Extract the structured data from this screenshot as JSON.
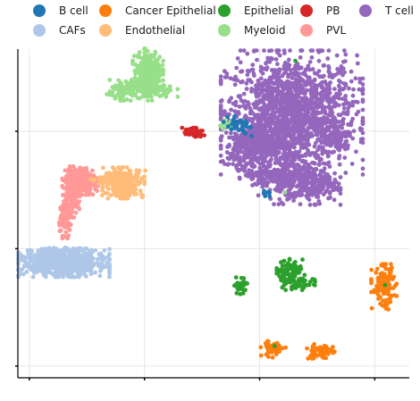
{
  "chart_data": {
    "type": "scatter",
    "title": "",
    "xlabel": "",
    "ylabel": "",
    "xlim": [
      -12,
      22
    ],
    "ylim": [
      -12,
      16
    ],
    "xticks": [
      -11,
      -1,
      9,
      19
    ],
    "yticks": [
      -11,
      -1,
      9
    ],
    "grid": true,
    "legend_position": "top",
    "series": [
      {
        "name": "B cell",
        "color": "#1f77b4",
        "clusters": [
          {
            "x": 7.1,
            "y": 9.5,
            "sx": 0.7,
            "sy": 0.35,
            "n": 30
          },
          {
            "x": 9.6,
            "y": 3.5,
            "sx": 0.3,
            "sy": 0.25,
            "n": 6
          }
        ]
      },
      {
        "name": "Cancer Epithelial",
        "color": "#ff7f0e",
        "clusters": [
          {
            "x": 19.8,
            "y": -4.3,
            "sx": 0.5,
            "sy": 0.9,
            "n": 120
          },
          {
            "x": 10.2,
            "y": -9.5,
            "sx": 0.5,
            "sy": 0.35,
            "n": 60
          },
          {
            "x": 14.2,
            "y": -9.8,
            "sx": 0.6,
            "sy": 0.3,
            "n": 60
          }
        ]
      },
      {
        "name": "Epithelial",
        "color": "#2ca02c",
        "clusters": [
          {
            "x": 11.7,
            "y": -3.2,
            "sx": 0.55,
            "sy": 0.6,
            "n": 110
          },
          {
            "x": 7.3,
            "y": -4.1,
            "sx": 0.3,
            "sy": 0.35,
            "n": 30
          },
          {
            "x": 12.8,
            "y": -4.0,
            "sx": 0.6,
            "sy": 0.2,
            "n": 25
          }
        ]
      },
      {
        "name": "PB",
        "color": "#d62728",
        "clusters": [
          {
            "x": 3.2,
            "y": 8.9,
            "sx": 0.45,
            "sy": 0.25,
            "n": 40
          }
        ]
      },
      {
        "name": "T cell",
        "color": "#9467bd",
        "clusters": [
          {
            "x": 11.8,
            "y": 10.6,
            "sx": 2.8,
            "sy": 2.4,
            "n": 1500
          },
          {
            "x": 9.0,
            "y": 8.0,
            "sx": 1.2,
            "sy": 0.9,
            "n": 350
          },
          {
            "x": 11.6,
            "y": 5.2,
            "sx": 0.9,
            "sy": 1.1,
            "n": 180
          },
          {
            "x": 13.6,
            "y": 4.5,
            "sx": 1.1,
            "sy": 0.8,
            "n": 200
          },
          {
            "x": 15.5,
            "y": 8.3,
            "sx": 0.6,
            "sy": 0.5,
            "n": 80
          },
          {
            "x": 9.2,
            "y": 5.3,
            "sx": 0.6,
            "sy": 0.8,
            "n": 80
          },
          {
            "x": 7.5,
            "y": 6.6,
            "sx": 0.7,
            "sy": 0.8,
            "n": 40
          }
        ]
      },
      {
        "name": "CAFs",
        "color": "#aec7e8",
        "clusters": [
          {
            "x": -8.0,
            "y": -2.2,
            "sx": 1.8,
            "sy": 0.55,
            "n": 700
          },
          {
            "x": -8.8,
            "y": -1.7,
            "sx": 0.9,
            "sy": 0.4,
            "n": 120
          },
          {
            "x": -9.8,
            "y": -2.5,
            "sx": 0.4,
            "sy": 0.15,
            "n": 40
          }
        ]
      },
      {
        "name": "Endothelial",
        "color": "#ffbb78",
        "clusters": [
          {
            "x": -2.8,
            "y": 4.6,
            "sx": 0.85,
            "sy": 0.6,
            "n": 280
          },
          {
            "x": -4.8,
            "y": 4.9,
            "sx": 0.4,
            "sy": 0.15,
            "n": 12
          }
        ]
      },
      {
        "name": "Myeloid",
        "color": "#98df8a",
        "clusters": [
          {
            "x": -0.7,
            "y": 14.3,
            "sx": 0.6,
            "sy": 0.8,
            "n": 220
          },
          {
            "x": -1.2,
            "y": 12.5,
            "sx": 1.4,
            "sy": 0.4,
            "n": 200
          },
          {
            "x": 6.1,
            "y": 9.5,
            "sx": 0.4,
            "sy": 0.2,
            "n": 25
          }
        ]
      },
      {
        "name": "PVL",
        "color": "#ff9896",
        "clusters": [
          {
            "x": -6.6,
            "y": 4.8,
            "sx": 0.7,
            "sy": 0.55,
            "n": 260
          },
          {
            "x": -7.4,
            "y": 3.2,
            "sx": 0.35,
            "sy": 0.7,
            "n": 120
          },
          {
            "x": -8.0,
            "y": 1.2,
            "sx": 0.3,
            "sy": 0.6,
            "n": 60
          }
        ]
      }
    ]
  }
}
